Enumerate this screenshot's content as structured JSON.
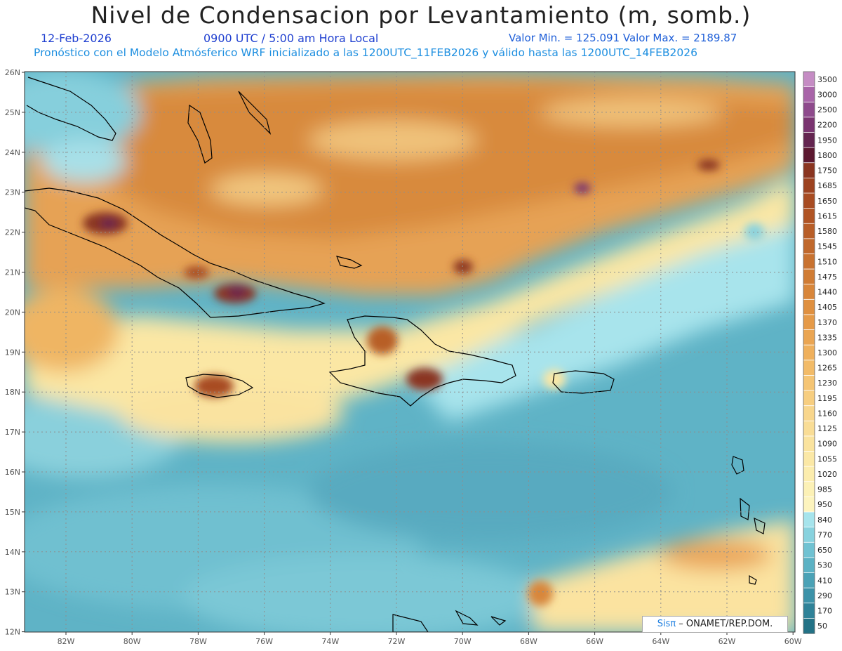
{
  "header": {
    "title": "Nivel de Condensacion por Levantamiento (m, somb.)",
    "date": "12-Feb-2026",
    "time": "0900 UTC / 5:00 am Hora Local",
    "minmax": "Valor Min. = 125.091   Valor Max. = 2189.87",
    "model": "Pronóstico con el Modelo Atmósferico WRF inicializado a las 1200UTC_11FEB2026 y válido hasta las  1200UTC_14FEB2026"
  },
  "map": {
    "lat_labels": [
      "26N",
      "25N",
      "24N",
      "23N",
      "22N",
      "21N",
      "20N",
      "19N",
      "18N",
      "17N",
      "16N",
      "15N",
      "14N",
      "13N",
      "12N"
    ],
    "lon_labels": [
      "82W",
      "80W",
      "78W",
      "76W",
      "74W",
      "72W",
      "70W",
      "68W",
      "66W",
      "64W",
      "62W",
      "60W"
    ]
  },
  "legend": {
    "levels": [
      "3500",
      "3000",
      "2500",
      "2200",
      "1950",
      "1800",
      "1750",
      "1685",
      "1650",
      "1615",
      "1580",
      "1545",
      "1510",
      "1475",
      "1440",
      "1405",
      "1370",
      "1335",
      "1300",
      "1265",
      "1230",
      "1195",
      "1160",
      "1125",
      "1090",
      "1055",
      "1020",
      "985",
      "950",
      "840",
      "770",
      "650",
      "530",
      "410",
      "290",
      "170",
      "50"
    ],
    "colors": [
      "#c58cc4",
      "#a864a8",
      "#8e4a8c",
      "#7a3470",
      "#642550",
      "#5c1830",
      "#8a3520",
      "#9c4220",
      "#a84c22",
      "#b05424",
      "#b85e28",
      "#c0682c",
      "#c87230",
      "#d07c34",
      "#d8863a",
      "#df9040",
      "#e59a48",
      "#eaa552",
      "#efb05c",
      "#f2bb68",
      "#f5c574",
      "#f7ce80",
      "#f8d68c",
      "#f9dd96",
      "#fae39e",
      "#fbe8a6",
      "#fcedae",
      "#fcf1b6",
      "#fdf4be",
      "#a6e4ec",
      "#88d2de",
      "#70c2d2",
      "#5cb2c4",
      "#4ba2b6",
      "#3c92a8",
      "#2f8298",
      "#237286"
    ]
  },
  "credit": {
    "sis": "Sisπ",
    "rest": " – ONAMET/REP.DOM."
  }
}
